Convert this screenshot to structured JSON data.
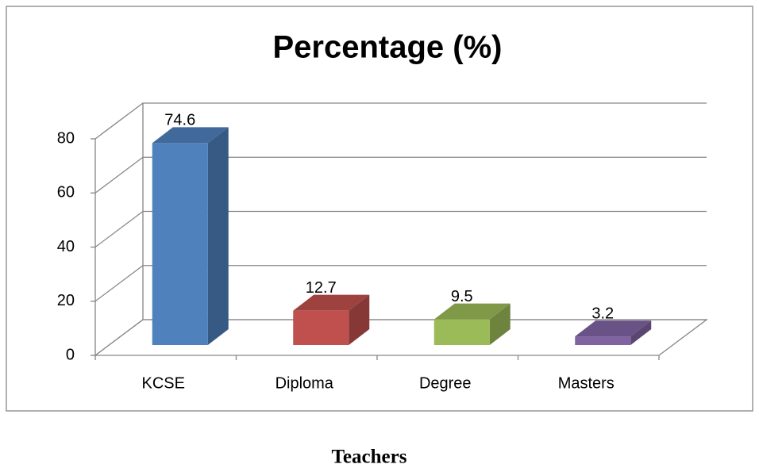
{
  "chart_data": {
    "type": "bar3d",
    "title": "Percentage (%)",
    "x_label": "Teachers",
    "categories": [
      "KCSE",
      "Diploma",
      "Degree",
      "Masters"
    ],
    "values": [
      74.6,
      12.7,
      9.5,
      3.2
    ],
    "colors": [
      "#4f81bd",
      "#c0504d",
      "#9bbb59",
      "#8064a2"
    ],
    "ylim": [
      0,
      80
    ],
    "yticks": [
      0,
      20,
      40,
      60,
      80
    ],
    "grid": true
  }
}
